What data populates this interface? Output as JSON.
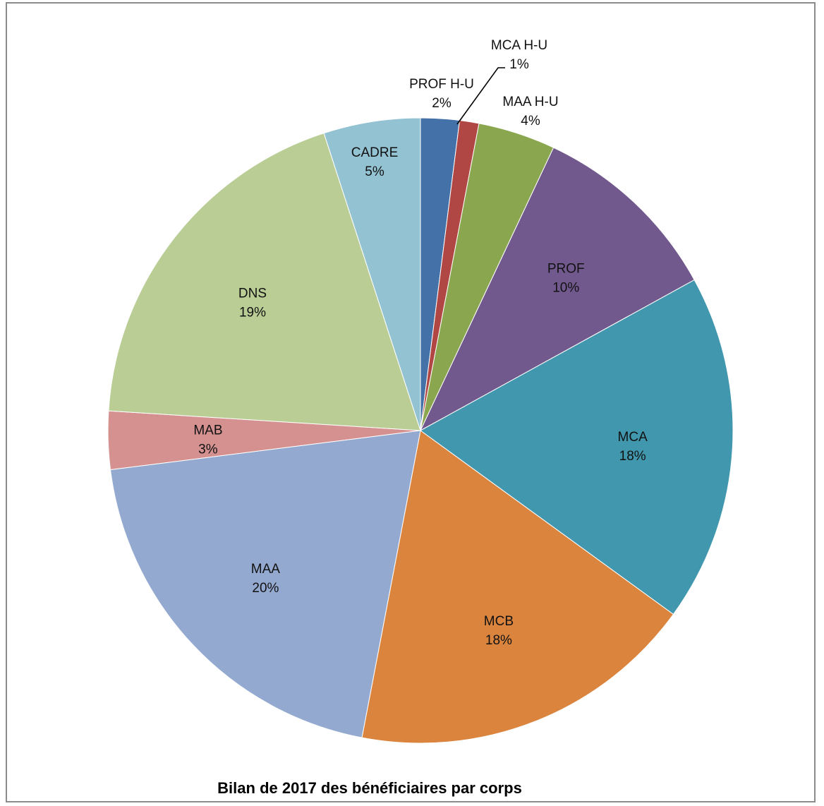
{
  "chart_data": {
    "type": "pie",
    "title": "Bilan de 2017 des bénéficiaires par corps",
    "start_angle_deg": 0,
    "direction": "clockwise",
    "slices": [
      {
        "label": "PROF H-U",
        "value": 2,
        "value_label": "2%",
        "color": "#4472a8"
      },
      {
        "label": "MCA H-U",
        "value": 1,
        "value_label": "1%",
        "color": "#b04744"
      },
      {
        "label": "MAA H-U",
        "value": 4,
        "value_label": "4%",
        "color": "#8aa64f"
      },
      {
        "label": "PROF",
        "value": 10,
        "value_label": "10%",
        "color": "#71598e"
      },
      {
        "label": "MCA",
        "value": 18,
        "value_label": "18%",
        "color": "#4198ae"
      },
      {
        "label": "MCB",
        "value": 18,
        "value_label": "18%",
        "color": "#db843e"
      },
      {
        "label": "MAA",
        "value": 20,
        "value_label": "20%",
        "color": "#94a9d0"
      },
      {
        "label": "MAB",
        "value": 3,
        "value_label": "3%",
        "color": "#d49190"
      },
      {
        "label": "DNS",
        "value": 19,
        "value_label": "19%",
        "color": "#b9cd95"
      },
      {
        "label": "CADRE",
        "value": 5,
        "value_label": "5%",
        "color": "#93c3d3"
      }
    ]
  }
}
